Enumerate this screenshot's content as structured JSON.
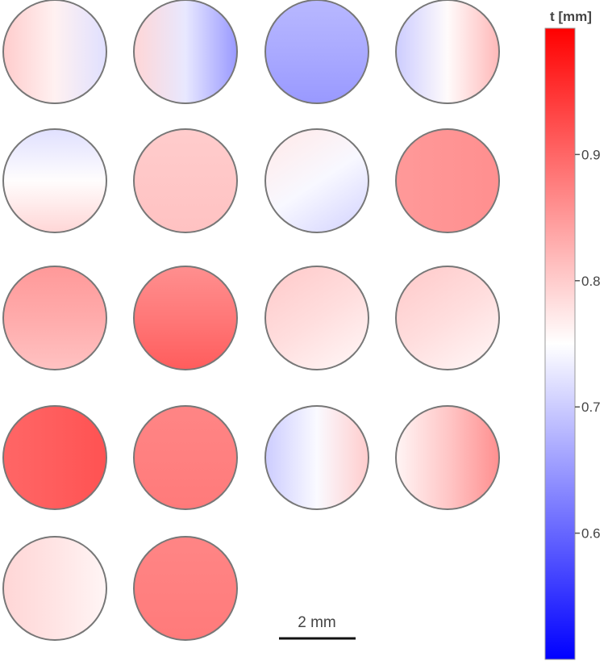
{
  "colorbar": {
    "title": "t [mm]",
    "min": 0.5,
    "max": 1.0,
    "colors": {
      "low": "#0000ff",
      "mid": "#ffffff",
      "high": "#ff0000"
    },
    "ticks": [
      {
        "value": 0.9,
        "label": "0.9"
      },
      {
        "value": 0.8,
        "label": "0.8"
      },
      {
        "value": 0.7,
        "label": "0.7"
      },
      {
        "value": 0.6,
        "label": "0.6"
      }
    ]
  },
  "scale_bar": {
    "label": "2 mm"
  },
  "samples": [
    {
      "base": 0.8,
      "grad": "to-right",
      "delta": -0.08
    },
    {
      "base": 0.79,
      "grad": "to-right",
      "delta": -0.14
    },
    {
      "base": 0.68,
      "grad": "to-bottom",
      "delta": -0.03
    },
    {
      "base": 0.7,
      "grad": "to-right",
      "delta": 0.12
    },
    {
      "base": 0.72,
      "grad": "to-bottom",
      "delta": 0.07
    },
    {
      "base": 0.8,
      "grad": "to-bottom",
      "delta": 0.01
    },
    {
      "base": 0.77,
      "grad": "diag",
      "delta": -0.06
    },
    {
      "base": 0.85,
      "grad": "to-right",
      "delta": 0.01
    },
    {
      "base": 0.85,
      "grad": "to-bottom",
      "delta": -0.04
    },
    {
      "base": 0.86,
      "grad": "to-bottom",
      "delta": 0.05
    },
    {
      "base": 0.8,
      "grad": "diag",
      "delta": -0.04
    },
    {
      "base": 0.8,
      "grad": "diag",
      "delta": -0.04
    },
    {
      "base": 0.9,
      "grad": "to-right",
      "delta": 0.02
    },
    {
      "base": 0.87,
      "grad": "to-bottom",
      "delta": 0.01
    },
    {
      "base": 0.7,
      "grad": "to-right",
      "delta": 0.1
    },
    {
      "base": 0.76,
      "grad": "to-right",
      "delta": 0.1
    },
    {
      "base": 0.79,
      "grad": "to-right",
      "delta": -0.03
    },
    {
      "base": 0.87,
      "grad": "to-bottom",
      "delta": 0.01
    }
  ]
}
